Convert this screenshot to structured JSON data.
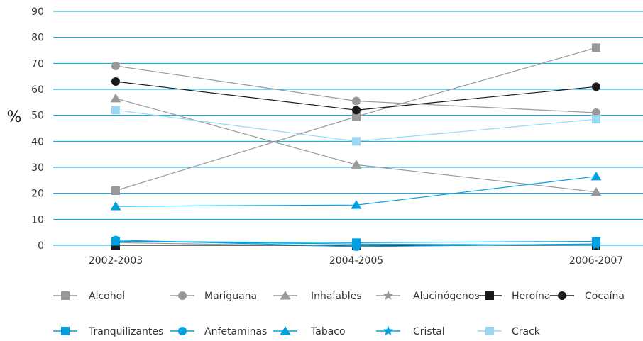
{
  "chart_data": {
    "type": "line",
    "title": "",
    "xlabel": "",
    "ylabel": "%",
    "ylim": [
      0,
      90
    ],
    "yticks": [
      0,
      10,
      20,
      30,
      40,
      50,
      60,
      70,
      80,
      90
    ],
    "grid": true,
    "legend_position": "bottom",
    "categories": [
      "2002-2003",
      "2004-2005",
      "2006-2007"
    ],
    "series": [
      {
        "name": "Alcohol",
        "values": [
          21,
          49.5,
          76
        ],
        "color": "#999999",
        "marker": "square"
      },
      {
        "name": "Mariguana",
        "values": [
          69,
          55.5,
          51
        ],
        "color": "#999999",
        "marker": "circle"
      },
      {
        "name": "Inhalables",
        "values": [
          56.5,
          31,
          20.5
        ],
        "color": "#999999",
        "marker": "triangle"
      },
      {
        "name": "Alucinógenos",
        "values": [
          1,
          -0.5,
          0.5
        ],
        "color": "#999999",
        "marker": "star"
      },
      {
        "name": "Heroína",
        "values": [
          0,
          0,
          0
        ],
        "color": "#1a1a1a",
        "marker": "square"
      },
      {
        "name": "Cocaína",
        "values": [
          63,
          52,
          61
        ],
        "color": "#1a1a1a",
        "marker": "circle"
      },
      {
        "name": "Tranquilizantes",
        "values": [
          1.5,
          1,
          1.5
        ],
        "color": "#00a0e0",
        "marker": "square"
      },
      {
        "name": "Anfetaminas",
        "values": [
          2,
          -0.5,
          0.5
        ],
        "color": "#00a0e0",
        "marker": "circle"
      },
      {
        "name": "Tabaco",
        "values": [
          15,
          15.5,
          26.5
        ],
        "color": "#00a0e0",
        "marker": "triangle"
      },
      {
        "name": "Cristal",
        "values": [
          1.5,
          0.5,
          0
        ],
        "color": "#00a0e0",
        "marker": "star"
      },
      {
        "name": "Crack",
        "values": [
          52,
          40,
          48.5
        ],
        "color": "#99d8f0",
        "marker": "square"
      }
    ],
    "style": {
      "grid_color": "#00a0e0",
      "axis_color": "#00a0e0"
    }
  }
}
